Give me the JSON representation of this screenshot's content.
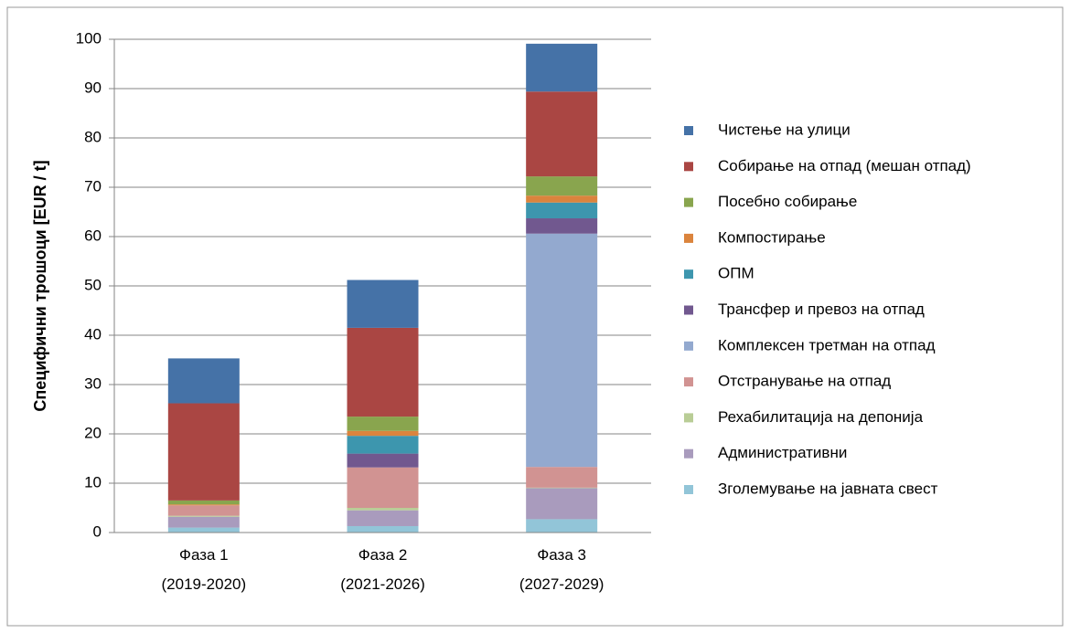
{
  "chart_data": {
    "type": "stacked_bar",
    "y_label": "Специфични трошоци [EUR / t]",
    "categories": [
      "Фаза 1\n(2019-2020)",
      "Фаза 2\n(2021-2026)",
      "Фаза 3\n(2027-2029)"
    ],
    "ylim": [
      0,
      100
    ],
    "yticks": [
      0,
      10,
      20,
      30,
      40,
      50,
      60,
      70,
      80,
      90,
      100
    ],
    "grid": true,
    "legend": "right",
    "series": [
      {
        "name": "Чистење на улици",
        "color": "#4572a7",
        "values": [
          9.1,
          9.7,
          9.7
        ]
      },
      {
        "name": "Собирање на отпад (мешан отпад)",
        "color": "#aa4643",
        "values": [
          19.7,
          18.0,
          17.2
        ]
      },
      {
        "name": "Посебно собирање",
        "color": "#89a54e",
        "values": [
          0.8,
          2.9,
          3.9
        ]
      },
      {
        "name": "Компостирање",
        "color": "#db843d",
        "values": [
          0.2,
          1.0,
          1.4
        ]
      },
      {
        "name": "ОПМ",
        "color": "#3d96ae",
        "values": [
          0,
          3.6,
          3.2
        ]
      },
      {
        "name": "Трансфер и превоз на отпад",
        "color": "#71588f",
        "values": [
          0,
          2.8,
          3.1
        ]
      },
      {
        "name": "Комплексен третман на отпад",
        "color": "#93a9cf",
        "values": [
          0,
          0,
          47.3
        ]
      },
      {
        "name": "Отстранување на отпад",
        "color": "#d19392",
        "values": [
          2.1,
          8.2,
          4.2
        ]
      },
      {
        "name": "Рехабилитација на депонија",
        "color": "#b9cd96",
        "values": [
          0.2,
          0.5,
          0.1
        ]
      },
      {
        "name": "Административни",
        "color": "#a99bbd",
        "values": [
          2.2,
          3.2,
          6.3
        ]
      },
      {
        "name": "Зголемување на јавната свест",
        "color": "#92c5d8",
        "values": [
          1.0,
          1.3,
          2.7
        ]
      }
    ]
  }
}
